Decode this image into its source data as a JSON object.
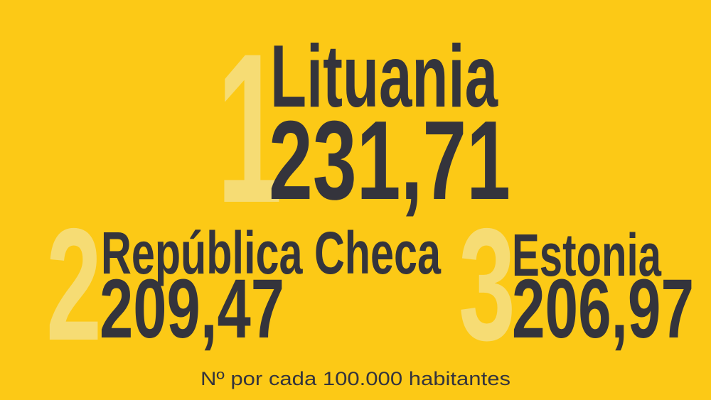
{
  "ranking": [
    {
      "rank": "1",
      "country": "Lituania",
      "value": "231,71"
    },
    {
      "rank": "2",
      "country": "República Checa",
      "value": "209,47"
    },
    {
      "rank": "3",
      "country": "Estonia",
      "value": "206,97"
    }
  ],
  "footer": "Nº por cada 100.000 habitantes"
}
